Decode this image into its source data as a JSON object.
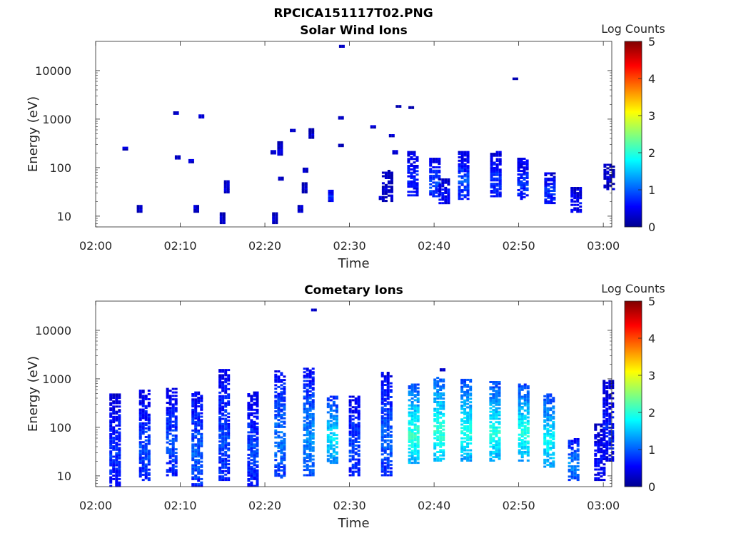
{
  "figure_title": "RPCICA151117T02.PNG",
  "colorbar": {
    "label": "Log Counts",
    "ticks": [
      "0",
      "1",
      "2",
      "3",
      "4",
      "5"
    ],
    "range": [
      0,
      5
    ],
    "colormap": "jet"
  },
  "chart_data": [
    {
      "type": "heatmap",
      "title": "Solar Wind Ions",
      "xlabel": "Time",
      "ylabel": "Energy (eV)",
      "x_ticks": [
        "02:00",
        "02:10",
        "02:20",
        "02:30",
        "02:40",
        "02:50",
        "03:00"
      ],
      "x_range_minutes": [
        0,
        61
      ],
      "y_ticks": [
        "10",
        "100",
        "1000",
        "10000"
      ],
      "y_scale": "log",
      "y_range": [
        6,
        40000
      ],
      "value_range": [
        0,
        5
      ],
      "blobs": [
        {
          "t": 5.2,
          "e_min": 12,
          "e_max": 17,
          "v": 0.3
        },
        {
          "t": 3.5,
          "e_min": 230,
          "e_max": 270,
          "v": 0.3
        },
        {
          "t": 9.5,
          "e_min": 1250,
          "e_max": 1450,
          "v": 0.3
        },
        {
          "t": 9.7,
          "e_min": 150,
          "e_max": 180,
          "v": 0.3
        },
        {
          "t": 11.3,
          "e_min": 125,
          "e_max": 150,
          "v": 0.3
        },
        {
          "t": 11.9,
          "e_min": 12,
          "e_max": 17,
          "v": 0.3
        },
        {
          "t": 12.5,
          "e_min": 1050,
          "e_max": 1250,
          "v": 0.3
        },
        {
          "t": 15.0,
          "e_min": 7,
          "e_max": 12,
          "v": 0.3
        },
        {
          "t": 15.5,
          "e_min": 30,
          "e_max": 55,
          "v": 0.3
        },
        {
          "t": 21.2,
          "e_min": 7,
          "e_max": 12,
          "v": 0.3
        },
        {
          "t": 21.0,
          "e_min": 190,
          "e_max": 230,
          "v": 0.3
        },
        {
          "t": 21.8,
          "e_min": 180,
          "e_max": 350,
          "v": 0.3
        },
        {
          "t": 21.9,
          "e_min": 55,
          "e_max": 65,
          "v": 0.3
        },
        {
          "t": 23.3,
          "e_min": 550,
          "e_max": 630,
          "v": 0.3
        },
        {
          "t": 24.2,
          "e_min": 12,
          "e_max": 17,
          "v": 0.3
        },
        {
          "t": 24.7,
          "e_min": 30,
          "e_max": 50,
          "v": 0.3
        },
        {
          "t": 24.8,
          "e_min": 80,
          "e_max": 100,
          "v": 0.3
        },
        {
          "t": 25.5,
          "e_min": 400,
          "e_max": 650,
          "v": 0.3
        },
        {
          "t": 27.8,
          "e_min": 20,
          "e_max": 35,
          "v": 0.6
        },
        {
          "t": 29.0,
          "e_min": 1000,
          "e_max": 1150,
          "v": 0.3
        },
        {
          "t": 29.0,
          "e_min": 270,
          "e_max": 310,
          "v": 0.3
        },
        {
          "t": 29.1,
          "e_min": 30000,
          "e_max": 34000,
          "v": 0.3
        },
        {
          "t": 32.8,
          "e_min": 650,
          "e_max": 750,
          "v": 0.3
        },
        {
          "t": 33.8,
          "e_min": 22,
          "e_max": 26,
          "v": 0.3
        },
        {
          "t": 34.5,
          "e_min": 20,
          "e_max": 90,
          "v": 0.3
        },
        {
          "t": 35.0,
          "e_min": 430,
          "e_max": 490,
          "v": 0.3
        },
        {
          "t": 35.4,
          "e_min": 190,
          "e_max": 230,
          "v": 0.3
        },
        {
          "t": 35.8,
          "e_min": 1750,
          "e_max": 1950,
          "v": 0.3
        },
        {
          "t": 37.3,
          "e_min": 1650,
          "e_max": 1850,
          "v": 0.3
        },
        {
          "t": 37.5,
          "e_min": 26,
          "e_max": 220,
          "v": 0.6
        },
        {
          "t": 40.1,
          "e_min": 25,
          "e_max": 160,
          "v": 0.8
        },
        {
          "t": 41.2,
          "e_min": 18,
          "e_max": 60,
          "v": 0.5
        },
        {
          "t": 43.5,
          "e_min": 22,
          "e_max": 220,
          "v": 0.8
        },
        {
          "t": 47.3,
          "e_min": 25,
          "e_max": 220,
          "v": 0.7
        },
        {
          "t": 49.6,
          "e_min": 6500,
          "e_max": 7200,
          "v": 0.3
        },
        {
          "t": 50.5,
          "e_min": 22,
          "e_max": 160,
          "v": 0.7
        },
        {
          "t": 53.7,
          "e_min": 18,
          "e_max": 80,
          "v": 0.7
        },
        {
          "t": 56.8,
          "e_min": 12,
          "e_max": 40,
          "v": 0.5
        },
        {
          "t": 60.7,
          "e_min": 35,
          "e_max": 120,
          "v": 0.3
        }
      ]
    },
    {
      "type": "heatmap",
      "title": "Cometary Ions",
      "xlabel": "Time",
      "ylabel": "Energy (eV)",
      "x_ticks": [
        "02:00",
        "02:10",
        "02:20",
        "02:30",
        "02:40",
        "02:50",
        "03:00"
      ],
      "x_range_minutes": [
        0,
        61
      ],
      "y_ticks": [
        "10",
        "100",
        "1000",
        "10000"
      ],
      "y_scale": "log",
      "y_range": [
        6,
        40000
      ],
      "value_range": [
        0,
        5
      ],
      "blobs": [
        {
          "t": 2.3,
          "e_min": 6,
          "e_max": 500,
          "v": 0.7
        },
        {
          "t": 5.8,
          "e_min": 8,
          "e_max": 600,
          "v": 0.8
        },
        {
          "t": 9.0,
          "e_min": 10,
          "e_max": 650,
          "v": 0.8
        },
        {
          "t": 12.0,
          "e_min": 6,
          "e_max": 550,
          "v": 0.9
        },
        {
          "t": 15.2,
          "e_min": 8,
          "e_max": 1600,
          "v": 0.8
        },
        {
          "t": 18.6,
          "e_min": 6,
          "e_max": 550,
          "v": 0.8
        },
        {
          "t": 21.8,
          "e_min": 9,
          "e_max": 1500,
          "v": 1.0
        },
        {
          "t": 25.2,
          "e_min": 10,
          "e_max": 1700,
          "v": 1.1
        },
        {
          "t": 28.0,
          "e_min": 18,
          "e_max": 450,
          "v": 1.5
        },
        {
          "t": 30.6,
          "e_min": 10,
          "e_max": 450,
          "v": 0.8
        },
        {
          "t": 34.4,
          "e_min": 10,
          "e_max": 1400,
          "v": 0.9
        },
        {
          "t": 37.6,
          "e_min": 18,
          "e_max": 800,
          "v": 1.8
        },
        {
          "t": 40.6,
          "e_min": 20,
          "e_max": 1100,
          "v": 1.8
        },
        {
          "t": 43.8,
          "e_min": 20,
          "e_max": 1000,
          "v": 1.7
        },
        {
          "t": 47.2,
          "e_min": 20,
          "e_max": 900,
          "v": 1.7
        },
        {
          "t": 50.6,
          "e_min": 20,
          "e_max": 800,
          "v": 1.7
        },
        {
          "t": 53.6,
          "e_min": 15,
          "e_max": 500,
          "v": 1.6
        },
        {
          "t": 56.5,
          "e_min": 8,
          "e_max": 60,
          "v": 1.1
        },
        {
          "t": 59.6,
          "e_min": 8,
          "e_max": 120,
          "v": 0.5
        },
        {
          "t": 60.6,
          "e_min": 20,
          "e_max": 950,
          "v": 0.6
        },
        {
          "t": 25.8,
          "e_min": 25000,
          "e_max": 28000,
          "v": 0.3
        },
        {
          "t": 41.0,
          "e_min": 1450,
          "e_max": 1650,
          "v": 0.3
        }
      ]
    }
  ]
}
